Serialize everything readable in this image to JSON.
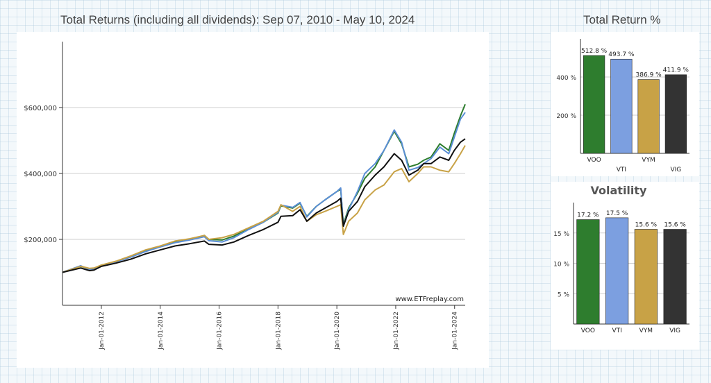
{
  "main_title": "Total Returns (including all dividends): Sep 07, 2010 - May 10, 2024",
  "side_title": "Total Return %",
  "chart_data": [
    {
      "type": "line",
      "title": "Total Returns (including all dividends): Sep 07, 2010 - May 10, 2024",
      "watermark": "www.ETFreplay.com",
      "y_ticks": [
        "$200,000",
        "$400,000",
        "$600,000"
      ],
      "y_tick_values": [
        200000,
        400000,
        600000
      ],
      "ylim": [
        0,
        800000
      ],
      "x_ticks": [
        "Jan-01-2012",
        "Jan-01-2014",
        "Jan-01-2016",
        "Jan-01-2018",
        "Jan-01-2020",
        "Jan-01-2022",
        "Jan-01-2024"
      ],
      "x_tick_years": [
        2012,
        2014,
        2016,
        2018,
        2020,
        2022,
        2024
      ],
      "xlim": [
        2010.68,
        2024.36
      ],
      "grid": true,
      "x": [
        2010.68,
        2011.3,
        2011.6,
        2011.75,
        2012.0,
        2012.5,
        2013.0,
        2013.5,
        2014.0,
        2014.5,
        2015.0,
        2015.5,
        2015.65,
        2016.1,
        2016.5,
        2017.0,
        2017.5,
        2018.0,
        2018.1,
        2018.5,
        2018.75,
        2018.98,
        2019.3,
        2019.6,
        2020.0,
        2020.13,
        2020.22,
        2020.4,
        2020.7,
        2020.95,
        2021.3,
        2021.6,
        2021.95,
        2022.2,
        2022.45,
        2022.75,
        2022.95,
        2023.2,
        2023.5,
        2023.8,
        2023.99,
        2024.2,
        2024.36
      ],
      "series": [
        {
          "name": "VOO",
          "color": "#2e7d2e",
          "values": [
            100000,
            118000,
            110000,
            112000,
            122000,
            133000,
            148000,
            165000,
            178000,
            192000,
            200000,
            212000,
            200000,
            198000,
            210000,
            232000,
            252000,
            280000,
            302000,
            295000,
            310000,
            270000,
            300000,
            320000,
            345000,
            352000,
            245000,
            295000,
            340000,
            385000,
            420000,
            470000,
            528000,
            490000,
            420000,
            428000,
            440000,
            450000,
            490000,
            470000,
            522000,
            575000,
            610000
          ]
        },
        {
          "name": "VTI",
          "color": "#5b8fd6",
          "values": [
            100000,
            120000,
            108000,
            110000,
            121000,
            132000,
            146000,
            163000,
            177000,
            190000,
            198000,
            208000,
            196000,
            192000,
            205000,
            230000,
            252000,
            282000,
            304000,
            297000,
            312000,
            268000,
            300000,
            320000,
            345000,
            356000,
            240000,
            290000,
            345000,
            400000,
            430000,
            470000,
            532000,
            495000,
            410000,
            418000,
            430000,
            445000,
            480000,
            460000,
            510000,
            565000,
            585000
          ]
        },
        {
          "name": "VYM",
          "color": "#c8a246",
          "values": [
            100000,
            118000,
            112000,
            113000,
            122000,
            134000,
            150000,
            168000,
            180000,
            195000,
            202000,
            212000,
            200000,
            205000,
            215000,
            235000,
            255000,
            285000,
            305000,
            285000,
            300000,
            255000,
            275000,
            285000,
            300000,
            305000,
            215000,
            255000,
            280000,
            320000,
            350000,
            365000,
            405000,
            415000,
            375000,
            400000,
            420000,
            420000,
            410000,
            405000,
            430000,
            460000,
            485000
          ]
        },
        {
          "name": "VIG",
          "color": "#111111",
          "values": [
            100000,
            113000,
            105000,
            107000,
            118000,
            128000,
            140000,
            156000,
            168000,
            180000,
            187000,
            195000,
            185000,
            183000,
            192000,
            212000,
            230000,
            252000,
            270000,
            272000,
            290000,
            255000,
            280000,
            295000,
            315000,
            325000,
            240000,
            285000,
            315000,
            360000,
            395000,
            420000,
            460000,
            440000,
            395000,
            410000,
            430000,
            430000,
            450000,
            440000,
            470000,
            495000,
            505000
          ]
        }
      ]
    },
    {
      "type": "bar",
      "title": "Total Return %",
      "categories": [
        "VOO",
        "VTI",
        "VYM",
        "VIG"
      ],
      "values": [
        512.8,
        493.7,
        386.9,
        411.9
      ],
      "value_labels": [
        "512.8 %",
        "493.7 %",
        "386.9 %",
        "411.9 %"
      ],
      "colors": [
        "#2e7d2e",
        "#7c9fe0",
        "#c8a246",
        "#333333"
      ],
      "y_ticks": [
        "200 %",
        "400 %"
      ],
      "y_tick_values": [
        200,
        400
      ],
      "ylim": [
        0,
        600
      ]
    },
    {
      "type": "bar",
      "title": "Volatility",
      "categories": [
        "VOO",
        "VTI",
        "VYM",
        "VIG"
      ],
      "values": [
        17.2,
        17.5,
        15.6,
        15.6
      ],
      "value_labels": [
        "17.2 %",
        "17.5 %",
        "15.6 %",
        "15.6 %"
      ],
      "colors": [
        "#2e7d2e",
        "#7c9fe0",
        "#c8a246",
        "#333333"
      ],
      "y_ticks": [
        "5 %",
        "10 %",
        "15 %"
      ],
      "y_tick_values": [
        5,
        10,
        15
      ],
      "ylim": [
        0,
        20
      ]
    }
  ]
}
